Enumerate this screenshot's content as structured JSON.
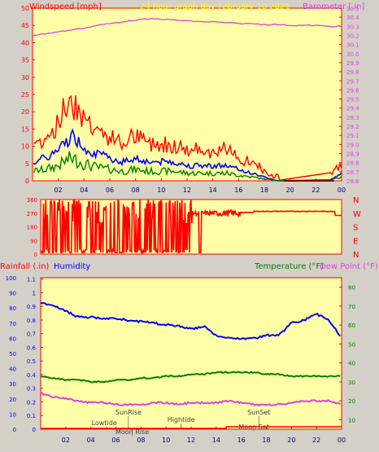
{
  "panel1": {
    "left_label": "Windspeed [mph]",
    "title": "24 hour graph day   February 10 2021",
    "right_label": "Barometer [.in]",
    "left_ticks": [
      "0",
      "5",
      "10",
      "15",
      "20",
      "25",
      "30",
      "35",
      "40",
      "45",
      "50"
    ],
    "right_ticks": [
      "28.6",
      "28.7",
      "28.8",
      "28.9",
      "29.0",
      "29.1",
      "29.2",
      "29.3",
      "29.4",
      "29.5",
      "29.6",
      "29.7",
      "29.8",
      "29.9",
      "30.0",
      "30.1",
      "30.2",
      "30.3",
      "30.4",
      "30.5"
    ],
    "x_ticks": [
      "02",
      "04",
      "06",
      "08",
      "10",
      "12",
      "14",
      "16",
      "18",
      "20",
      "22",
      "00"
    ]
  },
  "panel2": {
    "left_ticks": [
      "0",
      "90",
      "180",
      "270",
      "360"
    ],
    "right_labels": [
      "N",
      "W",
      "S",
      "E",
      "N"
    ]
  },
  "panel3": {
    "left_label": "Rainfall (.in)",
    "left_label2": "Humidity",
    "right_label": "Temperature (°F)",
    "right_label2": "Dew Point (°F)",
    "humidity_ticks": [
      "0",
      "10",
      "20",
      "30",
      "40",
      "50",
      "60",
      "70",
      "80",
      "90",
      "100"
    ],
    "rain_ticks": [
      "0",
      "0.1",
      "0.2",
      "0.3",
      "0.4",
      "0.5",
      "0.6",
      "0.7",
      "0.8",
      "0.9",
      "1",
      "1.1"
    ],
    "temp_ticks": [
      "10",
      "20",
      "30",
      "40",
      "50",
      "60",
      "70",
      "80"
    ],
    "x_ticks": [
      "02",
      "04",
      "06",
      "08",
      "10",
      "12",
      "14",
      "16",
      "18",
      "20",
      "22",
      "00"
    ],
    "markers": [
      {
        "label": "Lowtide",
        "hour": 5.3
      },
      {
        "label": "SunRise",
        "hour": 7.0
      },
      {
        "label": "Moon Rise",
        "hour": 7.3
      },
      {
        "label": "Hightide",
        "hour": 11.2
      },
      {
        "label": "SunSet",
        "hour": 17.4
      },
      {
        "label": "Moon Set",
        "hour": 17.0
      }
    ]
  },
  "colors": {
    "bg": "#d4d0c8",
    "plot_bg": "#ffffa8",
    "axis_red": "#ff0000",
    "wind": "#ff0000",
    "wind2": "#0000ff",
    "wind3": "#008000",
    "barometer": "#e040e0",
    "humidity": "#0000ff",
    "temperature": "#008000",
    "dewpoint": "#e040e0",
    "rain": "#ff0000",
    "title_yellow": "#ffff00",
    "rain_axis": "#0000ff",
    "temp_axis": "#008000"
  },
  "chart_data": [
    {
      "type": "line",
      "title": "24 hour graph day   February 10 2021",
      "xlabel": "",
      "ylabel": "Windspeed [mph]",
      "y2label": "Barometer [.in]",
      "ylim": [
        0,
        50
      ],
      "y2lim": [
        28.6,
        30.5
      ],
      "x": [
        0,
        1,
        2,
        3,
        4,
        5,
        6,
        7,
        8,
        9,
        10,
        11,
        12,
        13,
        14,
        15,
        16,
        17,
        18,
        19,
        20,
        21,
        22,
        23,
        24
      ],
      "series": [
        {
          "name": "Windspeed [mph]",
          "axis": "left",
          "values": [
            5,
            6,
            8,
            12,
            9,
            7,
            6,
            5,
            6,
            5,
            5,
            5,
            4,
            4,
            4,
            4,
            3,
            2,
            1,
            0,
            0,
            0,
            0,
            0,
            2
          ]
        },
        {
          "name": "Barometer [.in]",
          "axis": "right",
          "values": [
            30.2,
            30.22,
            30.24,
            30.26,
            30.28,
            30.31,
            30.33,
            30.35,
            30.37,
            30.38,
            30.38,
            30.37,
            30.36,
            30.35,
            30.35,
            30.34,
            30.33,
            30.33,
            30.32,
            30.32,
            30.31,
            30.31,
            30.31,
            30.3,
            30.3
          ]
        }
      ]
    },
    {
      "type": "scatter",
      "ylabel": "",
      "ylim": [
        0,
        360
      ],
      "x": [
        0,
        1,
        2,
        3,
        4,
        5,
        6,
        7,
        8,
        9,
        10,
        11,
        12,
        13,
        14,
        15,
        16,
        17,
        18,
        19,
        20,
        21,
        22,
        23,
        24
      ],
      "series": [
        {
          "name": "",
          "values": [
            270,
            200,
            330,
            150,
            280,
            240,
            320,
            260,
            300,
            200,
            310,
            280,
            265,
            265,
            270,
            255,
            280,
            290,
            280,
            280,
            280,
            280,
            280,
            280,
            260
          ]
        }
      ]
    },
    {
      "type": "line",
      "ylabel": "Humidity",
      "y2label": "Temperature (°F)",
      "ylim": [
        0,
        100
      ],
      "y2lim": [
        5,
        85
      ],
      "x": [
        0,
        1,
        2,
        3,
        4,
        5,
        6,
        7,
        8,
        9,
        10,
        11,
        12,
        13,
        14,
        15,
        16,
        17,
        18,
        19,
        20,
        21,
        22,
        23,
        24
      ],
      "series": [
        {
          "name": "Humidity",
          "axis": "left",
          "values": [
            83,
            82,
            78,
            74,
            74,
            73,
            73,
            72,
            71,
            70,
            69,
            68,
            66,
            68,
            62,
            60,
            60,
            60,
            62,
            62,
            70,
            72,
            76,
            72,
            60
          ]
        },
        {
          "name": "Temperature (°F)",
          "axis": "right",
          "values": [
            33,
            32,
            31,
            31,
            30,
            30,
            31,
            31,
            32,
            32,
            33,
            33,
            34,
            34,
            35,
            35,
            35,
            35,
            34,
            34,
            33,
            33,
            33,
            33,
            33
          ]
        },
        {
          "name": "Dew Point (°F)",
          "axis": "right",
          "values": [
            24,
            22,
            21,
            20,
            19,
            19,
            18,
            18,
            18,
            19,
            19,
            18,
            19,
            19,
            19,
            20,
            19,
            18,
            18,
            18,
            19,
            20,
            20,
            20,
            18
          ]
        },
        {
          "name": "Rainfall (.in)",
          "axis": "rain",
          "values": [
            0,
            0,
            0,
            0,
            0,
            0,
            0,
            0,
            0,
            0,
            0,
            0,
            0,
            0,
            0,
            0,
            0,
            0,
            0,
            0,
            0,
            0,
            0,
            0,
            0
          ]
        }
      ]
    }
  ]
}
